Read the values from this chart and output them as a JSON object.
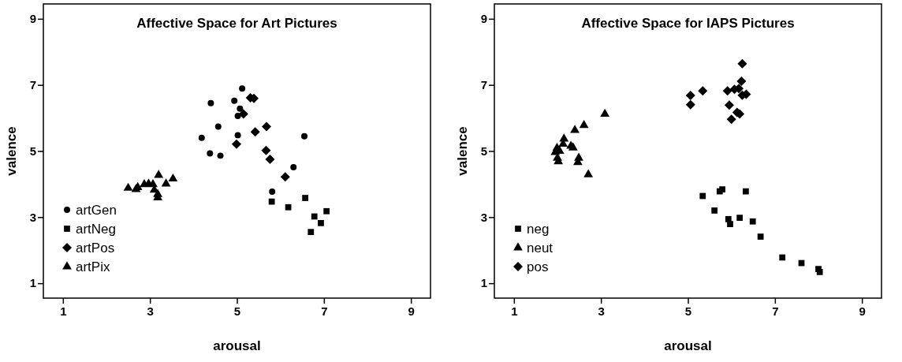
{
  "chart_data": [
    {
      "type": "scatter",
      "title": "Affective Space for Art Pictures",
      "xlabel": "arousal",
      "ylabel": "valence",
      "xlim": [
        0.55,
        9.45
      ],
      "ylim": [
        0.55,
        9.45
      ],
      "xticks": [
        1,
        3,
        5,
        7,
        9
      ],
      "yticks": [
        1,
        3,
        5,
        7,
        9
      ],
      "grid": false,
      "legend": "bottom left",
      "series": [
        {
          "name": "artGen",
          "color": "#000000",
          "marker": "circle",
          "x": [
            5.12,
            4.4,
            4.94,
            5.07,
            5.02,
            4.57,
            4.19,
            5.02,
            4.38,
            4.62,
            6.55,
            6.3,
            5.81
          ],
          "values": [
            6.89,
            6.45,
            6.52,
            6.28,
            6.06,
            5.74,
            5.4,
            5.48,
            4.93,
            4.86,
            5.45,
            4.51,
            3.77
          ]
        },
        {
          "name": "artNeg",
          "color": "#000000",
          "marker": "square",
          "x": [
            5.8,
            6.18,
            6.57,
            6.78,
            7.06,
            6.93,
            6.7
          ],
          "values": [
            3.47,
            3.3,
            3.58,
            3.02,
            3.18,
            2.82,
            2.55
          ]
        },
        {
          "name": "artPos",
          "color": "#000000",
          "marker": "diamond",
          "x": [
            5.39,
            5.31,
            5.15,
            5.68,
            5.42,
            4.99,
            5.67,
            5.76,
            6.11
          ],
          "values": [
            6.59,
            6.61,
            6.12,
            5.74,
            5.58,
            5.21,
            5.02,
            4.75,
            4.22
          ]
        },
        {
          "name": "artPix",
          "color": "#000000",
          "marker": "triangle",
          "x": [
            2.5,
            2.68,
            2.72,
            2.87,
            2.97,
            3.07,
            3.1,
            3.18,
            3.18,
            3.2,
            3.37,
            3.53
          ],
          "values": [
            3.88,
            3.84,
            3.9,
            3.99,
            4.01,
            3.99,
            3.82,
            3.69,
            3.59,
            4.27,
            4.01,
            4.16
          ]
        }
      ]
    },
    {
      "type": "scatter",
      "title": "Affective Space for IAPS Pictures",
      "xlabel": "arousal",
      "ylabel": "valence",
      "xlim": [
        0.55,
        9.45
      ],
      "ylim": [
        0.55,
        9.45
      ],
      "xticks": [
        1,
        3,
        5,
        7,
        9
      ],
      "yticks": [
        1,
        3,
        5,
        7,
        9
      ],
      "grid": false,
      "legend": "bottom left",
      "series": [
        {
          "name": "neg",
          "color": "#000000",
          "marker": "square",
          "x": [
            5.34,
            5.73,
            5.79,
            6.33,
            5.61,
            5.93,
            5.97,
            6.19,
            6.49,
            6.67,
            7.17,
            7.61,
            8.0,
            8.03
          ],
          "values": [
            3.64,
            3.78,
            3.84,
            3.78,
            3.2,
            2.94,
            2.79,
            2.98,
            2.87,
            2.41,
            1.78,
            1.61,
            1.43,
            1.34
          ]
        },
        {
          "name": "neut",
          "color": "#000000",
          "marker": "triangle",
          "x": [
            3.09,
            2.61,
            2.4,
            2.15,
            2.13,
            1.99,
            1.95,
            2.05,
            2.31,
            2.36,
            2.0,
            2.02,
            2.49,
            2.47,
            2.71
          ],
          "values": [
            6.12,
            5.78,
            5.63,
            5.37,
            5.21,
            5.09,
            4.96,
            5.0,
            5.15,
            5.1,
            4.79,
            4.68,
            4.79,
            4.66,
            4.29
          ]
        },
        {
          "name": "pos",
          "color": "#000000",
          "marker": "diamond",
          "x": [
            6.25,
            6.23,
            5.06,
            5.06,
            5.34,
            5.91,
            6.07,
            6.17,
            6.34,
            6.25,
            5.95,
            6.13,
            6.19,
            6.0
          ],
          "values": [
            7.64,
            7.11,
            6.68,
            6.4,
            6.82,
            6.82,
            6.87,
            6.89,
            6.72,
            6.69,
            6.39,
            6.17,
            6.12,
            5.96
          ]
        }
      ]
    }
  ]
}
